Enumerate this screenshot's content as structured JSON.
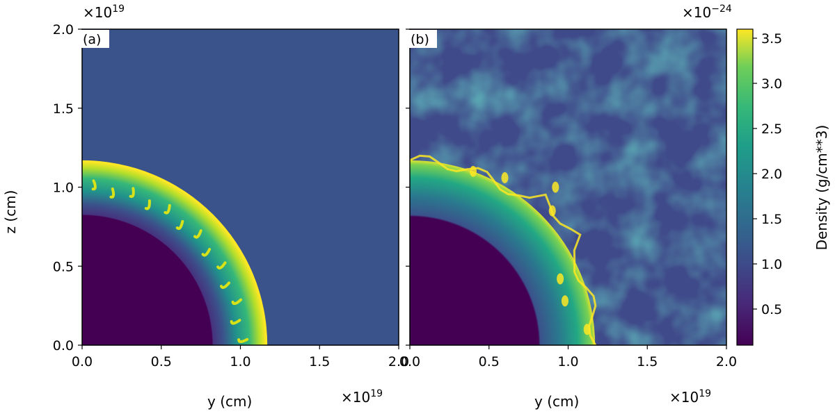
{
  "chart_data": [
    {
      "type": "heatmap",
      "panel_label": "(a)",
      "xlabel": "y (cm)",
      "ylabel": "z (cm)",
      "x_multiplier": "×10",
      "x_multiplier_exp": "19",
      "y_multiplier": "×10",
      "y_multiplier_exp": "19",
      "xlim": [
        0.0,
        2.0
      ],
      "ylim": [
        0.0,
        2.0
      ],
      "xticks": [
        "0.0",
        "0.5",
        "1.0",
        "1.5",
        "2.0"
      ],
      "yticks": [
        "0.0",
        "0.5",
        "1.0",
        "1.5",
        "2.0"
      ],
      "shell_inner_radius": 0.82,
      "shell_outer_radius": 1.17,
      "ambient_density": 1.0,
      "description_fields": {
        "cavity_density": 0.1,
        "shell_peak_density": 3.6
      }
    },
    {
      "type": "heatmap",
      "panel_label": "(b)",
      "xlabel": "y (cm)",
      "x_multiplier": "×10",
      "x_multiplier_exp": "19",
      "xlim": [
        0.0,
        2.0
      ],
      "ylim": [
        0.0,
        2.0
      ],
      "xticks": [
        "0.0",
        "0.5",
        "1.0",
        "1.5",
        "2.0"
      ],
      "shell_inner_radius": 0.82,
      "shell_outer_radius": 1.17,
      "ambient_density": 1.0
    }
  ],
  "colorbar": {
    "label": "Density (g/cm**3)",
    "multiplier": "×10",
    "multiplier_exp": "−24",
    "range": [
      0.1,
      3.6
    ],
    "ticks": [
      "0.5",
      "1.0",
      "1.5",
      "2.0",
      "2.5",
      "3.0",
      "3.5"
    ],
    "tick_values": [
      0.5,
      1.0,
      1.5,
      2.0,
      2.5,
      3.0,
      3.5
    ],
    "colormap": "viridis"
  },
  "colors": {
    "cavity": "#440154",
    "ambient": "#3a538b",
    "shell_mid": "#21918c",
    "shell_peak": "#fde725"
  }
}
